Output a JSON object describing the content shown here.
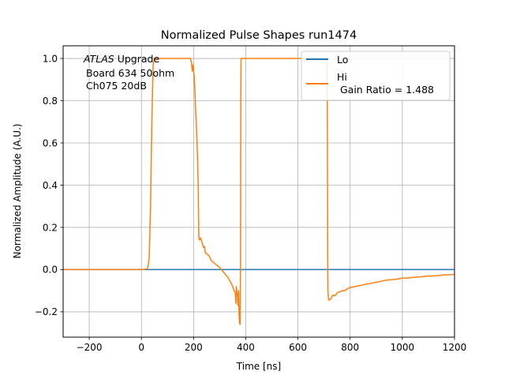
{
  "chart_data": {
    "type": "line",
    "title": "Normalized Pulse Shapes run1474",
    "xlabel": "Time [ns]",
    "ylabel": "Normalized Amplitude (A.U.)",
    "xlim": [
      -300,
      1200
    ],
    "ylim": [
      -0.32,
      1.06
    ],
    "xticks": [
      -200,
      0,
      200,
      400,
      600,
      800,
      1000,
      1200
    ],
    "xtick_labels": [
      "−200",
      "0",
      "200",
      "400",
      "600",
      "800",
      "1000",
      "1200"
    ],
    "yticks": [
      -0.2,
      0.0,
      0.2,
      0.4,
      0.6,
      0.8,
      1.0
    ],
    "ytick_labels": [
      "−0.2",
      "0.0",
      "0.2",
      "0.4",
      "0.6",
      "0.8",
      "1.0"
    ],
    "grid": true,
    "legend_position": "top-right",
    "annotation": {
      "italic": "ATLAS",
      "line1_rest": " Upgrade",
      "line2": "Board 634 50ohm",
      "line3": "Ch075 20dB"
    },
    "series": [
      {
        "name": "Lo",
        "legend_label": "Lo",
        "color": "#1f77b4",
        "points": [
          [
            -300,
            0.0
          ],
          [
            1200,
            0.0
          ]
        ]
      },
      {
        "name": "Hi",
        "legend_label": "Hi",
        "legend_sublabel": " Gain Ratio = 1.488",
        "color": "#ff7f0e",
        "points": [
          [
            -300,
            0.0
          ],
          [
            -200,
            0.0
          ],
          [
            -100,
            0.0
          ],
          [
            0,
            0.0
          ],
          [
            20,
            0.003
          ],
          [
            25,
            0.01
          ],
          [
            30,
            0.06
          ],
          [
            35,
            0.3
          ],
          [
            40,
            0.7
          ],
          [
            45,
            0.97
          ],
          [
            50,
            1.0
          ],
          [
            100,
            1.0
          ],
          [
            150,
            1.0
          ],
          [
            188,
            1.0
          ],
          [
            192,
            0.98
          ],
          [
            195,
            0.94
          ],
          [
            198,
            0.97
          ],
          [
            202,
            0.92
          ],
          [
            205,
            0.85
          ],
          [
            208,
            0.75
          ],
          [
            212,
            0.65
          ],
          [
            215,
            0.53
          ],
          [
            218,
            0.38
          ],
          [
            220,
            0.15
          ],
          [
            223,
            0.14
          ],
          [
            226,
            0.15
          ],
          [
            230,
            0.14
          ],
          [
            234,
            0.12
          ],
          [
            238,
            0.105
          ],
          [
            242,
            0.11
          ],
          [
            245,
            0.08
          ],
          [
            250,
            0.075
          ],
          [
            255,
            0.07
          ],
          [
            260,
            0.065
          ],
          [
            265,
            0.05
          ],
          [
            270,
            0.04
          ],
          [
            280,
            0.03
          ],
          [
            290,
            0.02
          ],
          [
            300,
            0.01
          ],
          [
            310,
            -0.005
          ],
          [
            320,
            -0.02
          ],
          [
            330,
            -0.035
          ],
          [
            340,
            -0.055
          ],
          [
            350,
            -0.08
          ],
          [
            355,
            -0.1
          ],
          [
            360,
            -0.11
          ],
          [
            362,
            -0.16
          ],
          [
            364,
            -0.08
          ],
          [
            366,
            -0.11
          ],
          [
            368,
            -0.12
          ],
          [
            370,
            -0.17
          ],
          [
            372,
            -0.1
          ],
          [
            374,
            -0.2
          ],
          [
            376,
            -0.25
          ],
          [
            378,
            -0.26
          ],
          [
            380,
            0.05
          ],
          [
            381,
            0.8
          ],
          [
            382,
            1.0
          ],
          [
            450,
            1.0
          ],
          [
            550,
            1.0
          ],
          [
            650,
            1.0
          ],
          [
            710,
            1.0
          ],
          [
            712,
            0.95
          ],
          [
            713,
            0.6
          ],
          [
            714,
            0.1
          ],
          [
            715,
            -0.1
          ],
          [
            717,
            -0.14
          ],
          [
            720,
            -0.145
          ],
          [
            725,
            -0.14
          ],
          [
            730,
            -0.13
          ],
          [
            735,
            -0.12
          ],
          [
            740,
            -0.125
          ],
          [
            745,
            -0.12
          ],
          [
            750,
            -0.11
          ],
          [
            760,
            -0.105
          ],
          [
            770,
            -0.1
          ],
          [
            780,
            -0.1
          ],
          [
            790,
            -0.09
          ],
          [
            800,
            -0.085
          ],
          [
            820,
            -0.08
          ],
          [
            840,
            -0.075
          ],
          [
            860,
            -0.07
          ],
          [
            880,
            -0.065
          ],
          [
            900,
            -0.06
          ],
          [
            920,
            -0.055
          ],
          [
            940,
            -0.05
          ],
          [
            960,
            -0.048
          ],
          [
            980,
            -0.045
          ],
          [
            1000,
            -0.04
          ],
          [
            1020,
            -0.04
          ],
          [
            1040,
            -0.037
          ],
          [
            1060,
            -0.035
          ],
          [
            1080,
            -0.033
          ],
          [
            1100,
            -0.03
          ],
          [
            1120,
            -0.03
          ],
          [
            1140,
            -0.028
          ],
          [
            1160,
            -0.025
          ],
          [
            1180,
            -0.025
          ],
          [
            1200,
            -0.022
          ]
        ]
      }
    ]
  }
}
